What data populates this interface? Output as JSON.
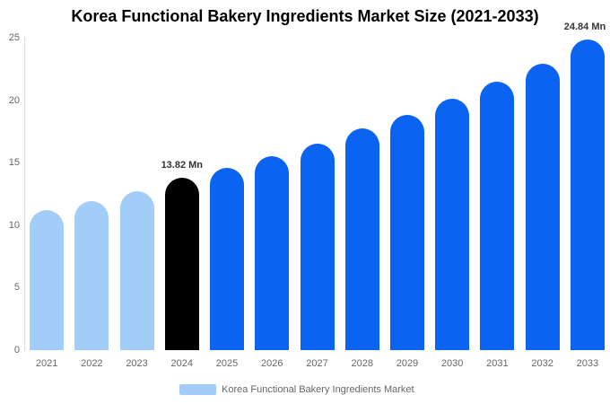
{
  "chart_data": {
    "type": "bar",
    "title": "Korea Functional Bakery Ingredients Market Size (2021-2033)",
    "categories": [
      "2021",
      "2022",
      "2023",
      "2024",
      "2025",
      "2026",
      "2027",
      "2028",
      "2029",
      "2030",
      "2031",
      "2032",
      "2033"
    ],
    "values": [
      11.2,
      11.95,
      12.75,
      13.82,
      14.55,
      15.5,
      16.55,
      17.75,
      18.85,
      20.15,
      21.5,
      22.95,
      24.84
    ],
    "bar_colors": [
      "#A3CDF9",
      "#A3CDF9",
      "#A3CDF9",
      "#000000",
      "#0B63F2",
      "#0B63F2",
      "#0B63F2",
      "#0B63F2",
      "#0B63F2",
      "#0B63F2",
      "#0B63F2",
      "#0B63F2",
      "#0B63F2"
    ],
    "annotations": [
      {
        "category": "2024",
        "text": "13.82 Mn"
      },
      {
        "category": "2033",
        "text": "24.84 Mn"
      }
    ],
    "xlabel": "",
    "ylabel": "",
    "ylim": [
      0,
      25
    ],
    "yticks": [
      "0",
      "5",
      "10",
      "15",
      "20",
      "25"
    ],
    "grid": false,
    "legend": {
      "position": "bottom",
      "items": [
        {
          "label": "Korea Functional Bakery Ingredients Market",
          "swatch_color": "#A3CDF9"
        }
      ]
    },
    "colors": {
      "light_blue": "#A3CDF9",
      "primary_blue": "#0B63F2",
      "highlight_black": "#000000",
      "axis_line": "#d9d9d9",
      "tick_text": "#666666",
      "annotation_text": "#333333",
      "title_text": "#000000"
    }
  }
}
